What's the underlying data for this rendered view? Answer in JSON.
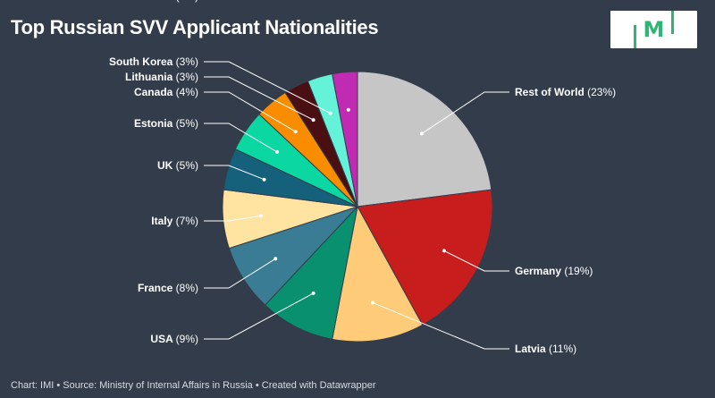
{
  "title": "Top Russian SVV Applicant Nationalities",
  "footer": "Chart: IMI • Source: Ministry of Internal Affairs in Russia • Created with Datawrapper",
  "logo": {
    "text": "M",
    "color": "#2bb673"
  },
  "chart_data": {
    "type": "pie",
    "title": "Top Russian SVV Applicant Nationalities",
    "unit": "%",
    "slices": [
      {
        "label": "Rest of World",
        "value": 23,
        "color": "#c6c6c6"
      },
      {
        "label": "Germany",
        "value": 19,
        "color": "#c71e1d"
      },
      {
        "label": "Latvia",
        "value": 11,
        "color": "#fecc78"
      },
      {
        "label": "USA",
        "value": 9,
        "color": "#09906e"
      },
      {
        "label": "France",
        "value": 8,
        "color": "#3a7c94"
      },
      {
        "label": "Italy",
        "value": 7,
        "color": "#ffe3a0"
      },
      {
        "label": "UK",
        "value": 5,
        "color": "#15607a"
      },
      {
        "label": "Estonia",
        "value": 5,
        "color": "#0ad7a1"
      },
      {
        "label": "Canada",
        "value": 4,
        "color": "#fa8c00"
      },
      {
        "label": "Lithuania",
        "value": 3,
        "color": "#4a0f13"
      },
      {
        "label": "South Korea",
        "value": 3,
        "color": "#64f2d8"
      },
      {
        "label": "Australia",
        "value": 3,
        "color": "#c12ab2"
      }
    ]
  }
}
